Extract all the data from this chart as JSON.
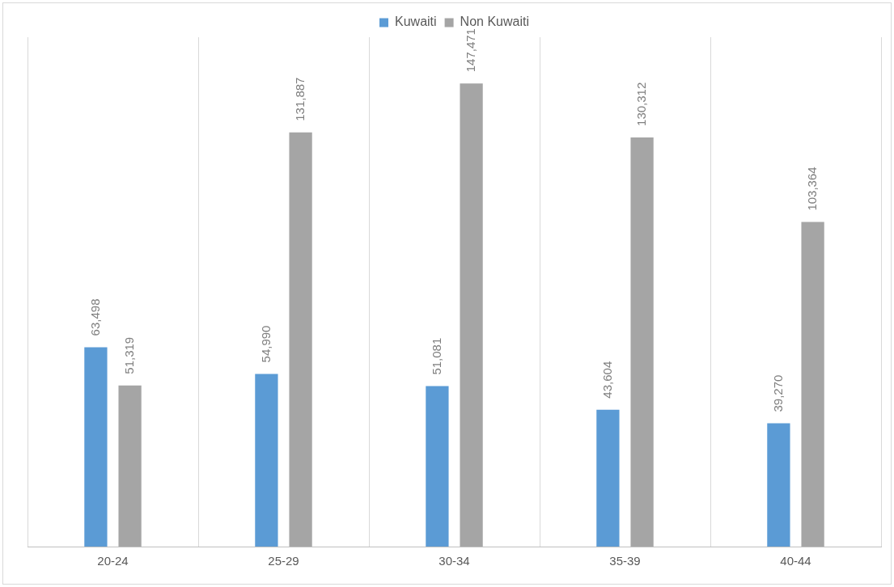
{
  "chart_data": {
    "type": "bar",
    "categories": [
      "20-24",
      "25-29",
      "30-34",
      "35-39",
      "40-44"
    ],
    "series": [
      {
        "name": "Kuwaiti",
        "color": "#5b9bd5",
        "values": [
          63498,
          54990,
          51081,
          43604,
          39270
        ],
        "value_labels": [
          "63,498",
          "54,990",
          "51,081",
          "43,604",
          "39,270"
        ]
      },
      {
        "name": "Non Kuwaiti",
        "color": "#a5a5a5",
        "values": [
          51319,
          131887,
          147471,
          130312,
          103364
        ],
        "value_labels": [
          "51,319",
          "131,887",
          "147,471",
          "130,312",
          "103,364"
        ]
      }
    ],
    "grid": "x",
    "legend": "top"
  }
}
